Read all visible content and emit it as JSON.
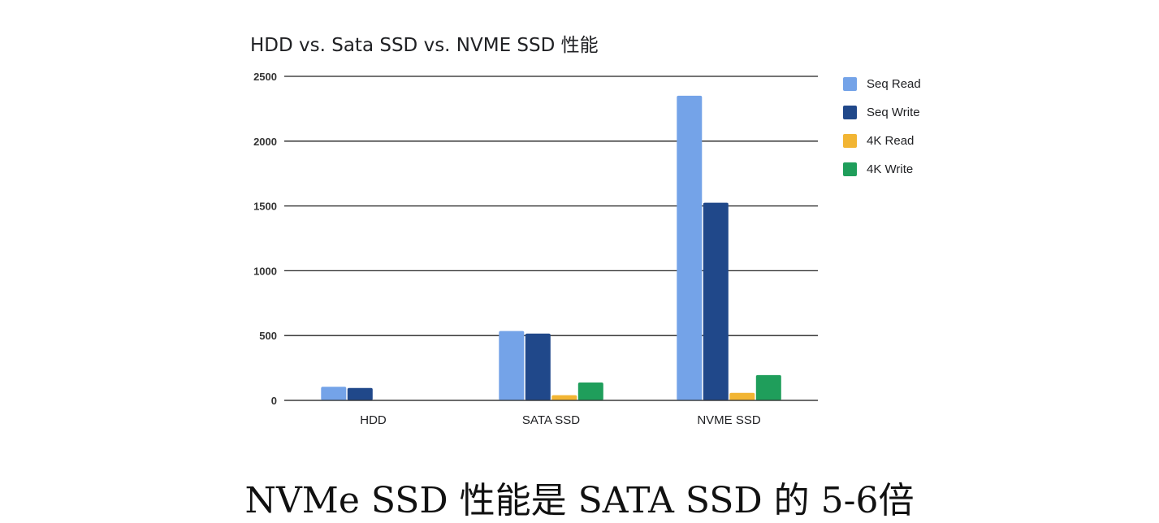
{
  "caption": "NVMe SSD 性能是 SATA SSD 的 5-6倍",
  "chart_data": {
    "type": "bar",
    "title": "HDD vs. Sata SSD vs. NVME SSD 性能",
    "xlabel": "",
    "ylabel": "",
    "categories": [
      "HDD",
      "SATA SSD",
      "NVME SSD"
    ],
    "ylim": [
      0,
      2500
    ],
    "yticks": [
      0,
      500,
      1000,
      1500,
      2000,
      2500
    ],
    "grid": true,
    "legend_position": "right",
    "series": [
      {
        "name": "Seq Read",
        "color": "#74a3e8",
        "values": [
          105,
          535,
          2350
        ]
      },
      {
        "name": "Seq Write",
        "color": "#20488a",
        "values": [
          95,
          515,
          1525
        ]
      },
      {
        "name": "4K Read",
        "color": "#f2b533",
        "values": [
          0,
          40,
          58
        ]
      },
      {
        "name": "4K Write",
        "color": "#1f9e5b",
        "values": [
          0,
          138,
          195
        ]
      }
    ]
  }
}
